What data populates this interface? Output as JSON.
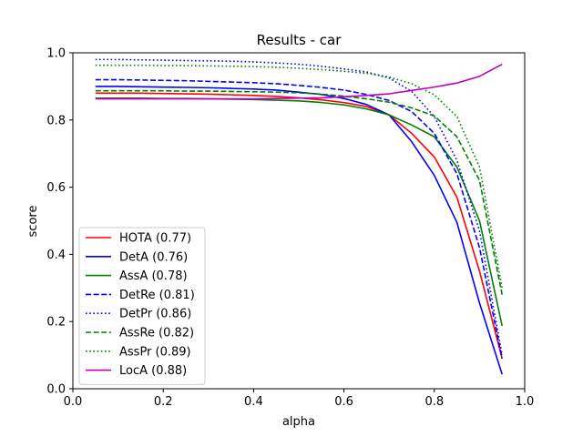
{
  "chart_data": {
    "type": "line",
    "title": "Results - car",
    "xlabel": "alpha",
    "ylabel": "score",
    "xlim": [
      0.0,
      1.0
    ],
    "ylim": [
      0.0,
      1.0
    ],
    "xticks": [
      "0.0",
      "0.2",
      "0.4",
      "0.6",
      "0.8",
      "1.0"
    ],
    "yticks": [
      "0.0",
      "0.2",
      "0.4",
      "0.6",
      "0.8",
      "1.0"
    ],
    "grid": false,
    "legend_position": "lower left",
    "x": [
      0.05,
      0.1,
      0.15,
      0.2,
      0.25,
      0.3,
      0.35,
      0.4,
      0.45,
      0.5,
      0.55,
      0.6,
      0.65,
      0.7,
      0.75,
      0.8,
      0.85,
      0.9,
      0.95
    ],
    "series": [
      {
        "name": "HOTA (0.77)",
        "color": "#ff0000",
        "dash": "solid",
        "values": [
          0.88,
          0.88,
          0.88,
          0.879,
          0.878,
          0.877,
          0.875,
          0.873,
          0.87,
          0.866,
          0.86,
          0.852,
          0.84,
          0.815,
          0.76,
          0.69,
          0.57,
          0.35,
          0.09
        ]
      },
      {
        "name": "DetA (0.76)",
        "color": "#0000ff",
        "dash": "solid",
        "values": [
          0.9,
          0.9,
          0.899,
          0.898,
          0.897,
          0.896,
          0.894,
          0.892,
          0.889,
          0.883,
          0.876,
          0.864,
          0.846,
          0.815,
          0.735,
          0.635,
          0.495,
          0.255,
          0.043
        ]
      },
      {
        "name": "AssA (0.78)",
        "color": "#008000",
        "dash": "solid",
        "values": [
          0.865,
          0.865,
          0.865,
          0.864,
          0.864,
          0.863,
          0.862,
          0.861,
          0.859,
          0.857,
          0.852,
          0.845,
          0.833,
          0.815,
          0.785,
          0.75,
          0.66,
          0.5,
          0.187
        ]
      },
      {
        "name": "DetRe (0.81)",
        "color": "#0000ff",
        "dash": "dashed",
        "values": [
          0.92,
          0.92,
          0.919,
          0.918,
          0.917,
          0.915,
          0.913,
          0.911,
          0.908,
          0.903,
          0.897,
          0.889,
          0.876,
          0.858,
          0.825,
          0.76,
          0.64,
          0.42,
          0.09
        ]
      },
      {
        "name": "DetPr (0.86)",
        "color": "#0000ff",
        "dash": "dotted",
        "values": [
          0.98,
          0.98,
          0.979,
          0.978,
          0.977,
          0.976,
          0.975,
          0.973,
          0.97,
          0.966,
          0.96,
          0.952,
          0.943,
          0.925,
          0.885,
          0.81,
          0.68,
          0.47,
          0.1
        ]
      },
      {
        "name": "AssRe (0.82)",
        "color": "#008000",
        "dash": "dashed",
        "values": [
          0.887,
          0.887,
          0.887,
          0.887,
          0.886,
          0.886,
          0.885,
          0.884,
          0.883,
          0.881,
          0.877,
          0.871,
          0.863,
          0.853,
          0.836,
          0.812,
          0.75,
          0.62,
          0.28
        ]
      },
      {
        "name": "AssPr (0.89)",
        "color": "#008000",
        "dash": "dotted",
        "values": [
          0.963,
          0.963,
          0.963,
          0.962,
          0.962,
          0.961,
          0.96,
          0.959,
          0.957,
          0.954,
          0.95,
          0.945,
          0.939,
          0.928,
          0.908,
          0.875,
          0.81,
          0.66,
          0.3
        ]
      },
      {
        "name": "LocA (0.88)",
        "color": "#bf00bf",
        "dash": "solid",
        "values": [
          0.863,
          0.863,
          0.863,
          0.863,
          0.863,
          0.863,
          0.863,
          0.863,
          0.864,
          0.865,
          0.866,
          0.869,
          0.873,
          0.878,
          0.888,
          0.898,
          0.91,
          0.93,
          0.966
        ]
      }
    ]
  }
}
